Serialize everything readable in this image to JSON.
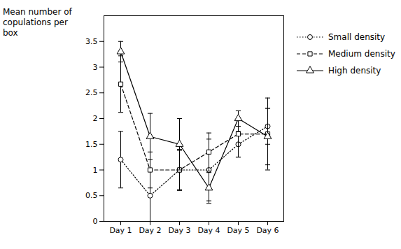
{
  "chart_data": {
    "type": "line",
    "ylabel": "Mean number of\ncopulations per\nbox",
    "categories": [
      "Day 1",
      "Day 2",
      "Day 3",
      "Day 4",
      "Day 5",
      "Day 6"
    ],
    "series": [
      {
        "name": "Small density",
        "color": "#000000",
        "marker": "circle",
        "line_style": "dotted",
        "values": [
          1.2,
          0.5,
          1.0,
          1.0,
          1.5,
          1.85
        ],
        "errors": [
          0.55,
          0.5,
          0.4,
          0.6,
          0.25,
          0.35
        ]
      },
      {
        "name": "Medium density",
        "color": "#000000",
        "marker": "square",
        "line_style": "dashed",
        "values": [
          2.67,
          1.0,
          1.0,
          1.35,
          1.7,
          1.7
        ],
        "errors": [
          0.55,
          0.35,
          0.38,
          0.37,
          0.45,
          0.7
        ]
      },
      {
        "name": "High density",
        "color": "#000000",
        "marker": "triangle",
        "line_style": "solid",
        "values": [
          3.3,
          1.65,
          1.5,
          0.65,
          2.0,
          1.65
        ],
        "errors": [
          0.2,
          0.45,
          0.5,
          0.3,
          0.15,
          0.55
        ]
      }
    ],
    "ylim": [
      0,
      4
    ],
    "yticks": [
      0,
      0.5,
      1.0,
      1.5,
      2.0,
      2.5,
      3.0,
      3.5
    ],
    "grid": false,
    "legend": "right"
  }
}
